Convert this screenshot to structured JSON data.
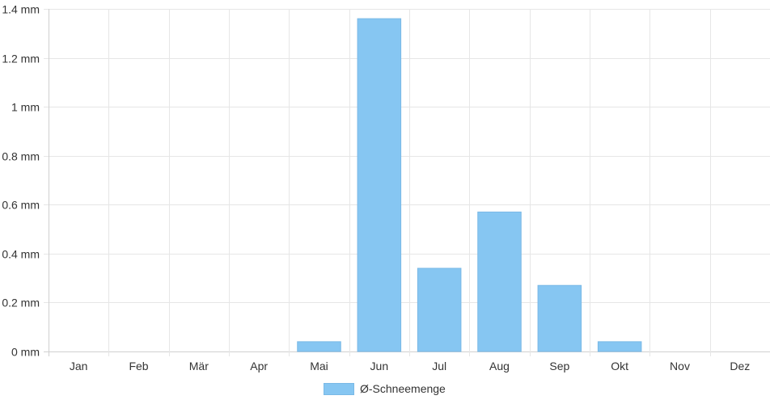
{
  "chart_data": {
    "type": "bar",
    "categories": [
      "Jan",
      "Feb",
      "Mär",
      "Apr",
      "Mai",
      "Jun",
      "Jul",
      "Aug",
      "Sep",
      "Okt",
      "Nov",
      "Dez"
    ],
    "series": [
      {
        "name": "Ø-Schneemenge",
        "values": [
          0,
          0,
          0,
          0,
          0.04,
          1.36,
          0.34,
          0.57,
          0.27,
          0.04,
          0,
          0
        ]
      }
    ],
    "ylim": [
      0,
      1.4
    ],
    "y_ticks": [
      0,
      0.2,
      0.4,
      0.6,
      0.8,
      1,
      1.2,
      1.4
    ],
    "y_tick_labels": [
      "0 mm",
      "0.2 mm",
      "0.4 mm",
      "0.6 mm",
      "0.8 mm",
      "1 mm",
      "1.2 mm",
      "1.4 mm"
    ],
    "grid": true,
    "legend_position": "bottom",
    "bar_color": "#86c6f2",
    "grid_color": "#e6e6e6"
  },
  "legend": {
    "label": "Ø-Schneemenge"
  }
}
